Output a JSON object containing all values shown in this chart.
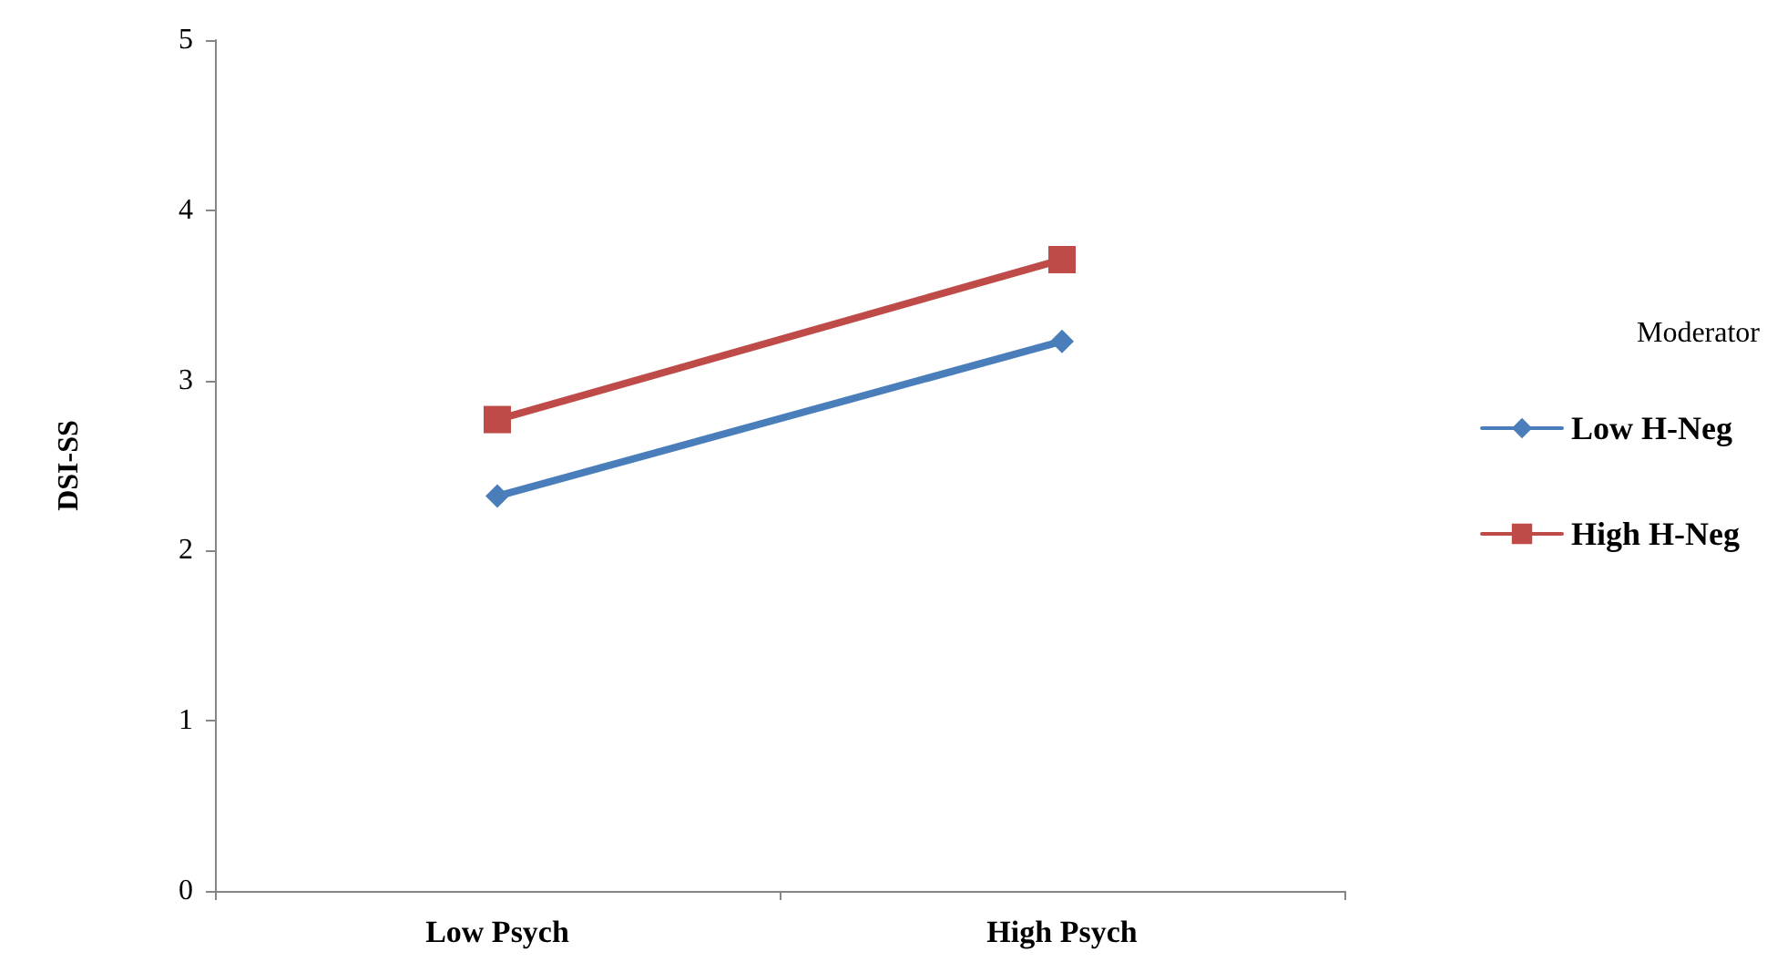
{
  "chart_data": {
    "type": "line",
    "ylabel": "DSI-SS",
    "legend_title": "Moderator",
    "categories": [
      "Low Psych",
      "High Psych"
    ],
    "series": [
      {
        "name": "Low H-Neg",
        "color": "#4a7ebb",
        "marker": "diamond",
        "values": [
          2.32,
          3.23
        ]
      },
      {
        "name": "High H-Neg",
        "color": "#be4b48",
        "marker": "square",
        "values": [
          2.77,
          3.71
        ]
      }
    ],
    "ylim": [
      0,
      5
    ],
    "yticks": [
      0,
      1,
      2,
      3,
      4,
      5
    ],
    "grid": false,
    "legend": "right"
  }
}
